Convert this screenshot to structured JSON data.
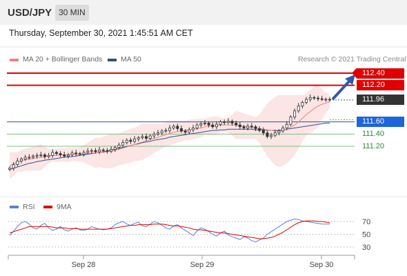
{
  "header": {
    "symbol": "USD/JPY",
    "timeframe": "30 MIN",
    "datetime": "Thursday, September 30, 2021 1:45:51 AM CET"
  },
  "legend": {
    "ma20_label": "MA 20 + Bollinger Bands",
    "ma50_label": "MA 50",
    "credit": "Research © 2021 Trading Central"
  },
  "colors": {
    "ma20": "#f08080",
    "ma50": "#2f4f8f",
    "resistance": "#e00000",
    "support": "#1e64dc",
    "support_minor": "#2e8b2e",
    "rsi": "#5b7fd6",
    "rsi_ma": "#e00000",
    "candle": "#333333",
    "bands": "#f7c6c6"
  },
  "price_levels": [
    {
      "label": "112.40",
      "kind": "resistance"
    },
    {
      "label": "112.20",
      "kind": "resistance"
    },
    {
      "label": "111.96",
      "kind": "current"
    },
    {
      "label": "111.60",
      "kind": "pivot"
    },
    {
      "label": "111.40",
      "kind": "support"
    },
    {
      "label": "111.20",
      "kind": "support"
    }
  ],
  "rsi_legend": {
    "rsi_label": "RSI",
    "ma_label": "9MA",
    "ticks": [
      "70",
      "50",
      "30"
    ]
  },
  "x_axis": {
    "ticks": [
      "Sep 28",
      "Sep 29",
      "Sep 30"
    ]
  },
  "chart_data": [
    {
      "type": "candlestick",
      "title": "USD/JPY",
      "timeframe": "30 MIN",
      "close": [
        110.84,
        110.9,
        110.96,
        110.99,
        111.02,
        111.02,
        111.04,
        111.05,
        111.06,
        111.03,
        111.05,
        111.1,
        111.08,
        111.06,
        111.04,
        111.06,
        111.09,
        111.08,
        111.07,
        111.1,
        111.12,
        111.13,
        111.11,
        111.14,
        111.13,
        111.12,
        111.15,
        111.18,
        111.22,
        111.26,
        111.3,
        111.28,
        111.32,
        111.34,
        111.36,
        111.33,
        111.37,
        111.4,
        111.42,
        111.45,
        111.46,
        111.5,
        111.53,
        111.49,
        111.45,
        111.43,
        111.47,
        111.5,
        111.55,
        111.57,
        111.58,
        111.55,
        111.52,
        111.56,
        111.6,
        111.59,
        111.61,
        111.58,
        111.55,
        111.52,
        111.5,
        111.53,
        111.52,
        111.49,
        111.46,
        111.42,
        111.36,
        111.38,
        111.42,
        111.45,
        111.5,
        111.56,
        111.68,
        111.78,
        111.86,
        111.92,
        111.97,
        112.0,
        111.99,
        111.98,
        111.97,
        111.97,
        111.96
      ],
      "ma20": [
        110.88,
        110.91,
        110.94,
        110.96,
        110.98,
        110.99,
        111.0,
        111.01,
        111.02,
        111.03,
        111.04,
        111.05,
        111.05,
        111.06,
        111.06,
        111.06,
        111.07,
        111.07,
        111.07,
        111.08,
        111.08,
        111.09,
        111.09,
        111.1,
        111.1,
        111.11,
        111.12,
        111.13,
        111.15,
        111.17,
        111.19,
        111.21,
        111.23,
        111.25,
        111.27,
        111.29,
        111.31,
        111.33,
        111.35,
        111.37,
        111.39,
        111.41,
        111.43,
        111.44,
        111.45,
        111.46,
        111.47,
        111.48,
        111.49,
        111.5,
        111.52,
        111.53,
        111.54,
        111.54,
        111.55,
        111.55,
        111.55,
        111.55,
        111.55,
        111.54,
        111.53,
        111.52,
        111.51,
        111.5,
        111.49,
        111.48,
        111.47,
        111.46,
        111.45,
        111.45,
        111.46,
        111.48,
        111.51,
        111.55,
        111.6,
        111.66,
        111.72,
        111.77,
        111.82,
        111.86,
        111.89,
        111.91,
        111.93
      ],
      "ma50": [
        110.82,
        110.84,
        110.86,
        110.88,
        110.9,
        110.92,
        110.93,
        110.95,
        110.96,
        110.97,
        110.98,
        110.99,
        111.0,
        111.01,
        111.02,
        111.03,
        111.03,
        111.04,
        111.05,
        111.06,
        111.07,
        111.08,
        111.09,
        111.1,
        111.11,
        111.12,
        111.14,
        111.15,
        111.17,
        111.18,
        111.2,
        111.21,
        111.23,
        111.24,
        111.26,
        111.27,
        111.28,
        111.3,
        111.31,
        111.32,
        111.33,
        111.35,
        111.36,
        111.37,
        111.38,
        111.39,
        111.4,
        111.41,
        111.42,
        111.43,
        111.44,
        111.45,
        111.46,
        111.46,
        111.47,
        111.47,
        111.48,
        111.48,
        111.48,
        111.48,
        111.48,
        111.48,
        111.48,
        111.47,
        111.47,
        111.47,
        111.46,
        111.46,
        111.46,
        111.46,
        111.47,
        111.48,
        111.49,
        111.5,
        111.51,
        111.52,
        111.53,
        111.54,
        111.55,
        111.56,
        111.57,
        111.58,
        111.58
      ],
      "levels": {
        "resistance": [
          112.4,
          112.2
        ],
        "current": 111.96,
        "pivot": 111.6,
        "support": [
          111.4,
          111.2
        ]
      },
      "ylim": [
        110.7,
        112.45
      ],
      "x_ticks": [
        "Sep 28",
        "Sep 29",
        "Sep 30"
      ]
    },
    {
      "type": "line",
      "series": [
        {
          "name": "RSI",
          "values": [
            48,
            55,
            62,
            68,
            70,
            66,
            60,
            58,
            64,
            67,
            60,
            56,
            58,
            62,
            57,
            55,
            58,
            60,
            57,
            56,
            58,
            62,
            60,
            58,
            57,
            58,
            60,
            65,
            68,
            70,
            66,
            64,
            67,
            69,
            63,
            62,
            66,
            70,
            68,
            64,
            60,
            58,
            63,
            65,
            60,
            56,
            52,
            48,
            55,
            60,
            58,
            54,
            50,
            47,
            52,
            55,
            49,
            46,
            44,
            42,
            46,
            44,
            40,
            38,
            41,
            44,
            50,
            54,
            58,
            62,
            66,
            70,
            72,
            74,
            73,
            71,
            70,
            69,
            68,
            67,
            66,
            66,
            66
          ]
        },
        {
          "name": "9MA",
          "values": [
            52,
            54,
            56,
            58,
            60,
            62,
            62,
            62,
            62,
            62,
            62,
            61,
            60,
            60,
            60,
            59,
            59,
            59,
            58,
            58,
            58,
            58,
            58,
            58,
            58,
            58,
            59,
            60,
            61,
            62,
            63,
            64,
            64,
            65,
            65,
            65,
            65,
            66,
            66,
            66,
            65,
            64,
            63,
            63,
            62,
            61,
            60,
            58,
            57,
            57,
            56,
            55,
            54,
            53,
            52,
            52,
            51,
            50,
            49,
            48,
            47,
            46,
            45,
            44,
            43,
            43,
            44,
            45,
            47,
            50,
            53,
            57,
            61,
            65,
            68,
            70,
            71,
            71,
            71,
            70,
            70,
            69,
            68
          ]
        }
      ],
      "ylim": [
        20,
        80
      ],
      "y_ticks": [
        70,
        50,
        30
      ]
    }
  ]
}
